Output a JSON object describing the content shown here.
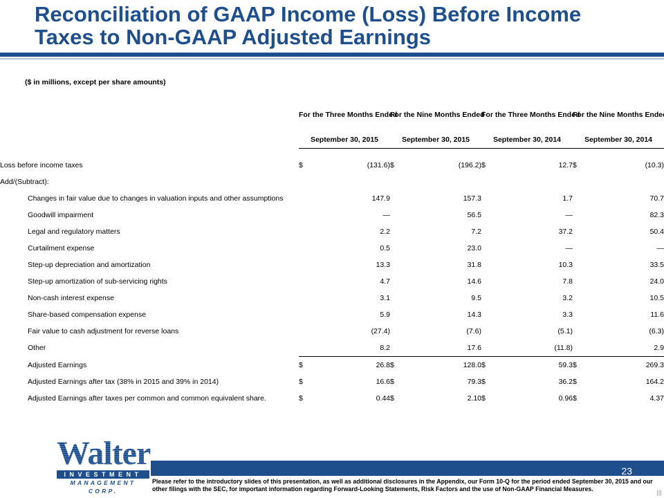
{
  "title": {
    "line1": "Reconciliation of GAAP Income (Loss) Before Income",
    "line2": "Taxes to Non-GAAP Adjusted Earnings"
  },
  "units_note": "($ in millions, except per share amounts)",
  "columns": [
    {
      "heading": "For the Three Months Ended",
      "date": "September 30, 2015"
    },
    {
      "heading": "For the Nine Months Ended",
      "date": "September 30, 2015"
    },
    {
      "heading": "For the Three Months Ended",
      "date": "September 30, 2014"
    },
    {
      "heading": "For the Nine Months Ended",
      "date": "September 30, 2014"
    }
  ],
  "rows": [
    {
      "label": "Loss before income taxes",
      "cur": [
        "$",
        "$",
        "$",
        "$"
      ],
      "values": [
        "(131.6)",
        "(196.2)",
        "12.7",
        "(10.3)"
      ]
    },
    {
      "label": "Add/(Subtract):",
      "cur": [
        "",
        "",
        "",
        ""
      ],
      "values": [
        "",
        "",
        "",
        ""
      ]
    },
    {
      "label": "Changes in fair value due to changes in valuation inputs and other assumptions",
      "cur": [
        "",
        "",
        "",
        ""
      ],
      "values": [
        "147.9",
        "157.3",
        "1.7",
        "70.7"
      ]
    },
    {
      "label": "Goodwill impairment",
      "cur": [
        "",
        "",
        "",
        ""
      ],
      "values": [
        "—",
        "56.5",
        "—",
        "82.3"
      ]
    },
    {
      "label": "Legal and regulatory matters",
      "cur": [
        "",
        "",
        "",
        ""
      ],
      "values": [
        "2.2",
        "7.2",
        "37.2",
        "50.4"
      ]
    },
    {
      "label": "Curtailment expense",
      "cur": [
        "",
        "",
        "",
        ""
      ],
      "values": [
        "0.5",
        "23.0",
        "—",
        "—"
      ]
    },
    {
      "label": "Step-up depreciation and amortization",
      "cur": [
        "",
        "",
        "",
        ""
      ],
      "values": [
        "13.3",
        "31.8",
        "10.3",
        "33.5"
      ]
    },
    {
      "label": "Step-up amortization of sub-servicing rights",
      "cur": [
        "",
        "",
        "",
        ""
      ],
      "values": [
        "4.7",
        "14.6",
        "7.8",
        "24.0"
      ]
    },
    {
      "label": "Non-cash interest expense",
      "cur": [
        "",
        "",
        "",
        ""
      ],
      "values": [
        "3.1",
        "9.5",
        "3.2",
        "10.5"
      ]
    },
    {
      "label": "Share-based compensation expense",
      "cur": [
        "",
        "",
        "",
        ""
      ],
      "values": [
        "5.9",
        "14.3",
        "3.3",
        "11.6"
      ]
    },
    {
      "label": "Fair value to cash adjustment for reverse loans",
      "cur": [
        "",
        "",
        "",
        ""
      ],
      "values": [
        "(27.4)",
        "(7.6)",
        "(5.1)",
        "(6.3)"
      ]
    },
    {
      "label": "Other",
      "cur": [
        "",
        "",
        "",
        ""
      ],
      "values": [
        "8.2",
        "17.6",
        "(11.8)",
        "2.9"
      ]
    },
    {
      "label": "Adjusted Earnings",
      "cur": [
        "$",
        "$",
        "$",
        "$"
      ],
      "values": [
        "26.8",
        "128.0",
        "59.3",
        "269.3"
      ]
    },
    {
      "label": "Adjusted Earnings after tax (38% in 2015 and 39% in 2014)",
      "cur": [
        "$",
        "$",
        "$",
        "$"
      ],
      "values": [
        "16.6",
        "79.3",
        "36.2",
        "164.2"
      ]
    },
    {
      "label": "Adjusted Earnings after taxes per common and common equivalent share.",
      "cur": [
        "$",
        "$",
        "$",
        "$"
      ],
      "values": [
        "0.44",
        "2.10",
        "0.96",
        "4.37"
      ]
    }
  ],
  "logo": {
    "word": "Walter",
    "band": "INVESTMENT",
    "band2": "MANAGEMENT CORP."
  },
  "page_number": "23",
  "disclaimer": "Please refer to the introductory slides of this presentation, as well as additional disclosures in the Appendix, our Form 10-Q for the period ended September 30, 2015 and our other filings with the SEC, for important information regarding Forward-Looking Statements, Risk Factors and the use of Non-GAAP Financial Measures.",
  "colors": {
    "brand_blue": "#1f4e8c"
  }
}
